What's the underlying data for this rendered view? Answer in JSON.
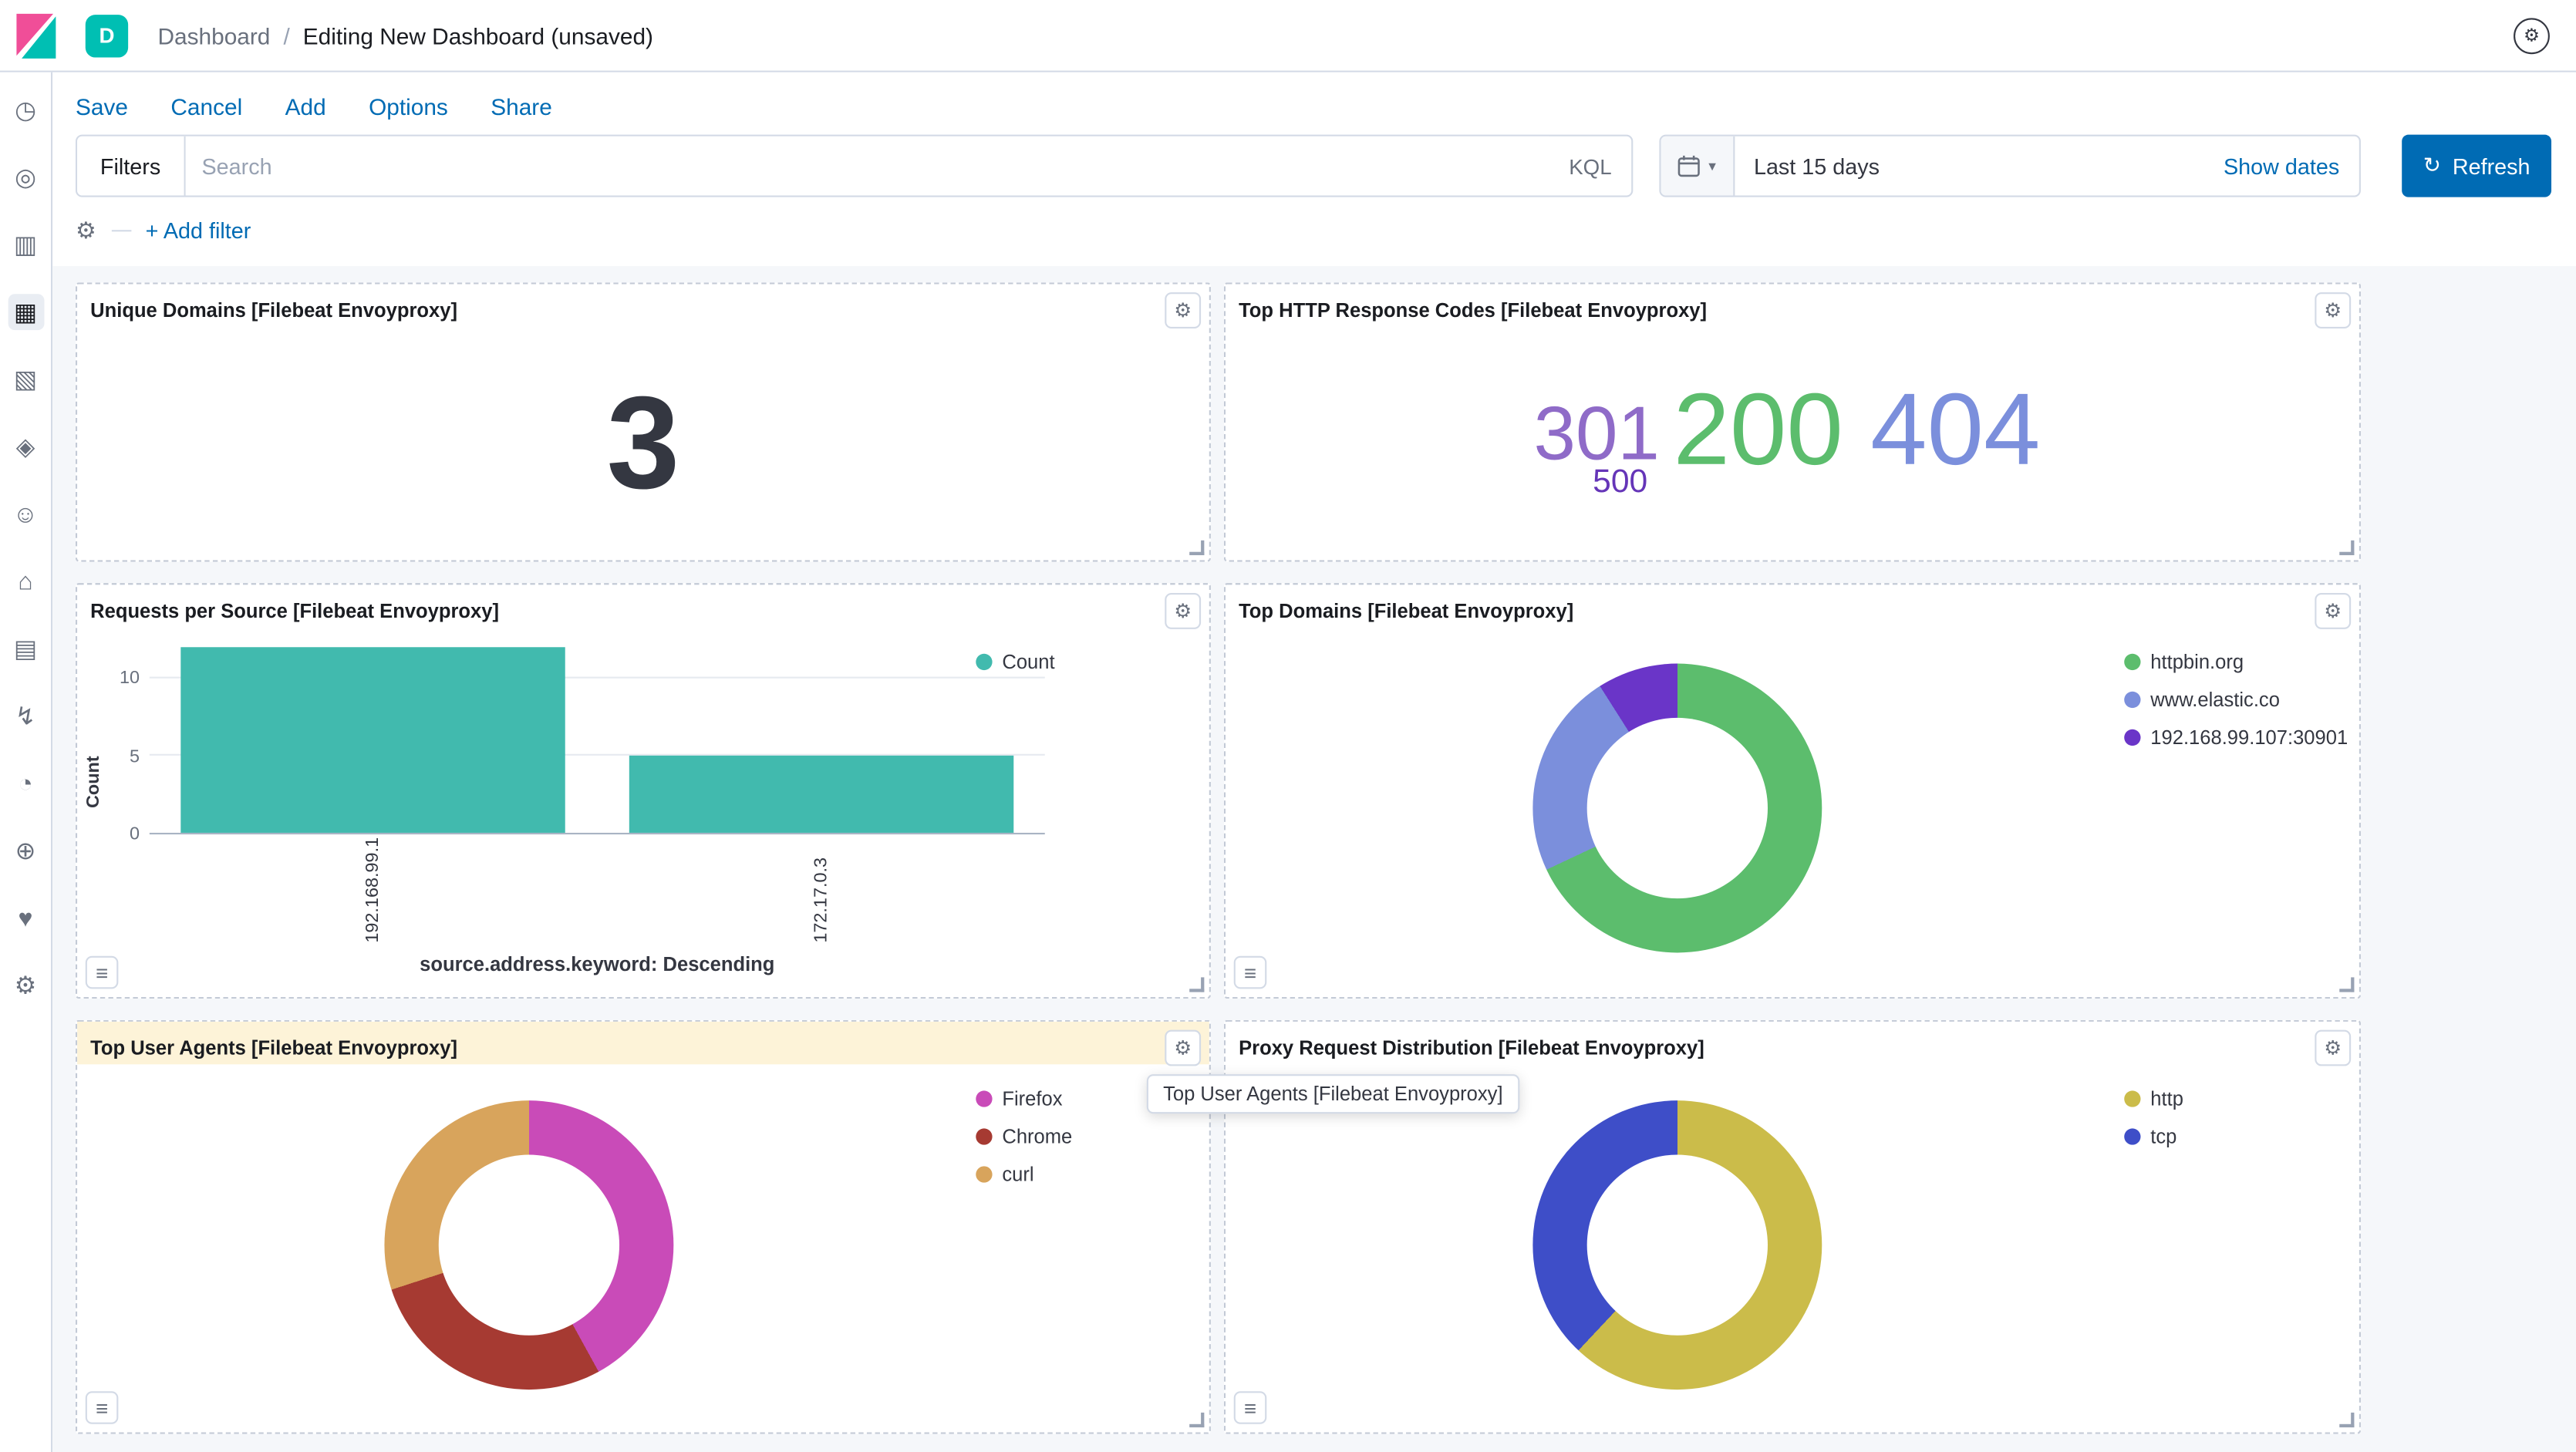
{
  "header": {
    "space_badge": "D",
    "breadcrumbs": {
      "section": "Dashboard",
      "separator": "/",
      "current": "Editing New Dashboard (unsaved)"
    }
  },
  "toolbar": {
    "links": [
      {
        "label": "Save"
      },
      {
        "label": "Cancel"
      },
      {
        "label": "Add"
      },
      {
        "label": "Options"
      },
      {
        "label": "Share"
      }
    ]
  },
  "query_bar": {
    "filters_label": "Filters",
    "search_placeholder": "Search",
    "kql_label": "KQL",
    "time_range": "Last 15 days",
    "show_dates_label": "Show dates",
    "refresh_label": "Refresh"
  },
  "filter_bar": {
    "add_filter_label": "+ Add filter"
  },
  "icons": {
    "panel_gear": "⚙",
    "legend_toggle": "≡",
    "refresh": "↻",
    "chevron_down": "▾",
    "header_settings": "⚙",
    "filter_gear": "⚙"
  },
  "sidebar": {
    "items": [
      {
        "name": "recently-viewed",
        "glyph": "◷"
      },
      {
        "name": "discover",
        "glyph": "◎"
      },
      {
        "name": "visualize",
        "glyph": "▥"
      },
      {
        "name": "dashboard",
        "glyph": "▦",
        "selected": true
      },
      {
        "name": "canvas",
        "glyph": "▧"
      },
      {
        "name": "maps",
        "glyph": "◈"
      },
      {
        "name": "machine-learning",
        "glyph": "☺"
      },
      {
        "name": "metrics",
        "glyph": "⌂"
      },
      {
        "name": "logs",
        "glyph": "▤"
      },
      {
        "name": "apm",
        "glyph": "↯"
      },
      {
        "name": "uptime",
        "glyph": "◔"
      },
      {
        "name": "siem",
        "glyph": "⊕"
      },
      {
        "name": "monitoring",
        "glyph": "♥"
      },
      {
        "name": "management",
        "glyph": "⚙"
      }
    ]
  },
  "tooltip": {
    "text": "Top User Agents [Filebeat Envoyproxy]"
  },
  "panels": {
    "unique_domains": {
      "title": "Unique Domains [Filebeat Envoyproxy]",
      "chart_data": {
        "type": "metric",
        "value": "3"
      }
    },
    "response_codes": {
      "title": "Top HTTP Response Codes [Filebeat Envoyproxy]",
      "chart_data": {
        "type": "tag_cloud",
        "tags": [
          {
            "text": "301",
            "color": "#8F6BC8",
            "font_size": "46px"
          },
          {
            "text": "200",
            "color": "#5CBD6D",
            "font_size": "62px"
          },
          {
            "text": "404",
            "color": "#7B8FDC",
            "font_size": "62px"
          },
          {
            "text": "500",
            "color": "#6535B8",
            "font_size": "20px"
          }
        ]
      }
    },
    "requests_per_source": {
      "title": "Requests per Source [Filebeat Envoyproxy]",
      "chart_data": {
        "type": "bar",
        "categories": [
          "192.168.99.1",
          "172.17.0.3"
        ],
        "series": [
          {
            "name": "Count",
            "color": "#41BAAE",
            "values": [
              12,
              5
            ]
          }
        ],
        "xlabel": "source.address.keyword: Descending",
        "ylabel": "Count",
        "yticks": [
          0,
          5,
          10
        ],
        "ylim": [
          0,
          12
        ],
        "legend_position": "right"
      }
    },
    "top_domains": {
      "title": "Top Domains [Filebeat Envoyproxy]",
      "chart_data": {
        "type": "donut",
        "slices": [
          {
            "label": "httpbin.org",
            "pct": 68,
            "color": "#5CBD6D"
          },
          {
            "label": "www.elastic.co",
            "pct": 23,
            "color": "#7B8FDC"
          },
          {
            "label": "192.168.99.107:30901",
            "pct": 9,
            "color": "#6A35C8"
          }
        ],
        "legend_position": "right"
      }
    },
    "top_user_agents": {
      "title": "Top User Agents [Filebeat Envoyproxy]",
      "highlighted": true,
      "chart_data": {
        "type": "donut",
        "slices": [
          {
            "label": "Firefox",
            "pct": 42,
            "color": "#C94BB8"
          },
          {
            "label": "Chrome",
            "pct": 28,
            "color": "#A63A32"
          },
          {
            "label": "curl",
            "pct": 30,
            "color": "#D8A45C"
          }
        ],
        "legend_position": "right"
      }
    },
    "proxy_distribution": {
      "title": "Proxy Request Distribution [Filebeat Envoyproxy]",
      "chart_data": {
        "type": "donut",
        "slices": [
          {
            "label": "http",
            "pct": 62,
            "color": "#CBBC4A"
          },
          {
            "label": "tcp",
            "pct": 38,
            "color": "#3E4EC8"
          }
        ],
        "legend_position": "right"
      }
    }
  }
}
